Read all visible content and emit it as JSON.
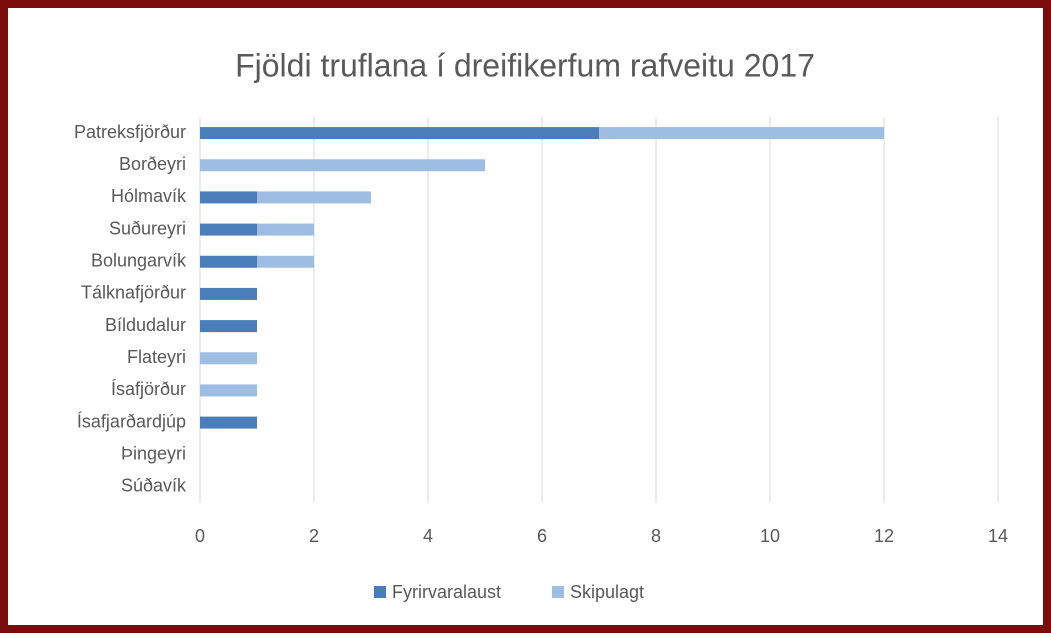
{
  "chart_data": {
    "type": "bar",
    "orientation": "horizontal",
    "stacked": true,
    "title": "Fjöldi truflana í dreifikerfum rafveitu 2017",
    "categories": [
      "Patreksfjörður",
      "Borðeyri",
      "Hólmavík",
      "Suðureyri",
      "Bolungarvík",
      "Tálknafjörður",
      "Bíldudalur",
      "Flateyri",
      "Ísafjörður",
      "Ísafjarðardjúp",
      "Þingeyri",
      "Súðavík"
    ],
    "series": [
      {
        "name": "Fyrirvaralaust",
        "color": "#4a7ebb",
        "values": [
          7,
          0,
          1,
          1,
          1,
          1,
          1,
          0,
          0,
          1,
          0,
          0
        ]
      },
      {
        "name": "Skipulagt",
        "color": "#9dbde3",
        "values": [
          5,
          5,
          2,
          1,
          1,
          0,
          0,
          1,
          1,
          0,
          0,
          0
        ]
      }
    ],
    "xlim": [
      0,
      14
    ],
    "xticks": [
      0,
      2,
      4,
      6,
      8,
      10,
      12,
      14
    ],
    "grid": true,
    "legend": "bottom"
  }
}
